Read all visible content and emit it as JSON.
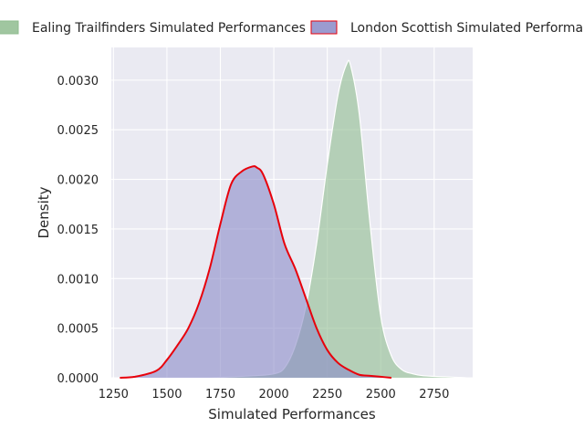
{
  "chart_data": {
    "type": "area",
    "title": "",
    "xlabel": "Simulated Performances",
    "ylabel": "Density",
    "xlim": [
      1240,
      2930
    ],
    "ylim": [
      0,
      0.00333
    ],
    "xticks": [
      "1250",
      "1500",
      "1750",
      "2000",
      "2250",
      "2500",
      "2750"
    ],
    "yticks": [
      "0.0000",
      "0.0005",
      "0.0010",
      "0.0015",
      "0.0020",
      "0.0025",
      "0.0030"
    ],
    "grid": true,
    "legend_position": "top",
    "series": [
      {
        "name": "Ealing Trailfinders Simulated Performances",
        "fill_color": "#8fbc8f",
        "line_color": "#ffffff",
        "x": [
          1700,
          1900,
          2000,
          2050,
          2100,
          2150,
          2200,
          2250,
          2300,
          2340,
          2360,
          2400,
          2450,
          2500,
          2550,
          2600,
          2650,
          2700,
          2800,
          2900
        ],
        "y": [
          0.0,
          2e-05,
          4e-05,
          0.0001,
          0.00032,
          0.00072,
          0.00135,
          0.00215,
          0.00285,
          0.00316,
          0.00314,
          0.00265,
          0.00155,
          0.00062,
          0.00022,
          8e-05,
          4e-05,
          2e-05,
          1e-05,
          0.0
        ]
      },
      {
        "name": "London Scottish Simulated Performances",
        "fill_color": "#8a8ac8",
        "line_color": "#e8000b",
        "x": [
          1280,
          1350,
          1450,
          1500,
          1550,
          1600,
          1650,
          1700,
          1750,
          1800,
          1850,
          1900,
          1920,
          1950,
          2000,
          2050,
          2100,
          2150,
          2200,
          2250,
          2300,
          2350,
          2400,
          2450,
          2500,
          2550
        ],
        "y": [
          0.0,
          1e-05,
          7e-05,
          0.00018,
          0.00033,
          0.0005,
          0.00075,
          0.0011,
          0.00155,
          0.00195,
          0.00208,
          0.00213,
          0.00212,
          0.00205,
          0.00175,
          0.00135,
          0.0011,
          0.0008,
          0.0005,
          0.00028,
          0.00015,
          8e-05,
          3e-05,
          2e-05,
          1e-05,
          0.0
        ]
      }
    ]
  }
}
